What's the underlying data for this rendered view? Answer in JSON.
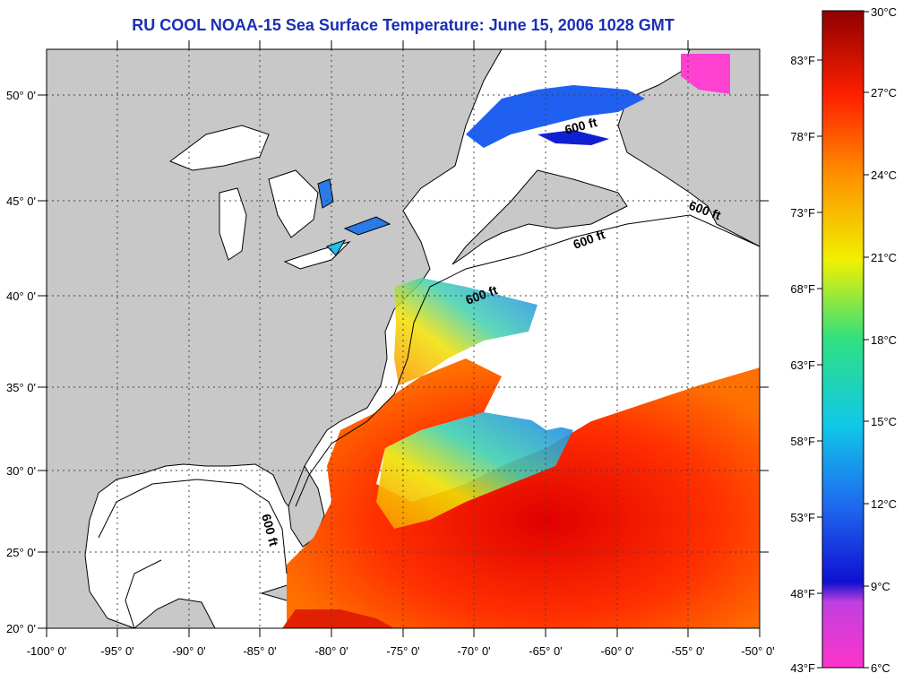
{
  "map": {
    "title": "RU COOL  NOAA-15  Sea Surface Temperature:  June 15, 2006 1028 GMT",
    "lon_ticks": [
      "-100° 0'",
      "-95° 0'",
      "-90° 0'",
      "-85° 0'",
      "-80° 0'",
      "-75° 0'",
      "-70° 0'",
      "-65° 0'",
      "-60° 0'",
      "-55° 0'",
      "-50° 0'"
    ],
    "lat_ticks": [
      "50° 0'",
      "45° 0'",
      "40° 0'",
      "35° 0'",
      "30° 0'",
      "25° 0'",
      "20° 0'"
    ],
    "contour_labels": [
      "600 ft",
      "600 ft",
      "600 ft",
      "600 ft",
      "600 ft"
    ],
    "colors": {
      "land": "#c8c8c8",
      "cloud": "#ffffff",
      "title": "#1a2fb4"
    }
  },
  "colorbar": {
    "celsius": [
      "30°C",
      "27°C",
      "24°C",
      "21°C",
      "18°C",
      "15°C",
      "12°C",
      "9°C",
      "6°C"
    ],
    "fahrenheit": [
      "83°F",
      "78°F",
      "73°F",
      "68°F",
      "63°F",
      "58°F",
      "53°F",
      "48°F",
      "43°F"
    ]
  }
}
